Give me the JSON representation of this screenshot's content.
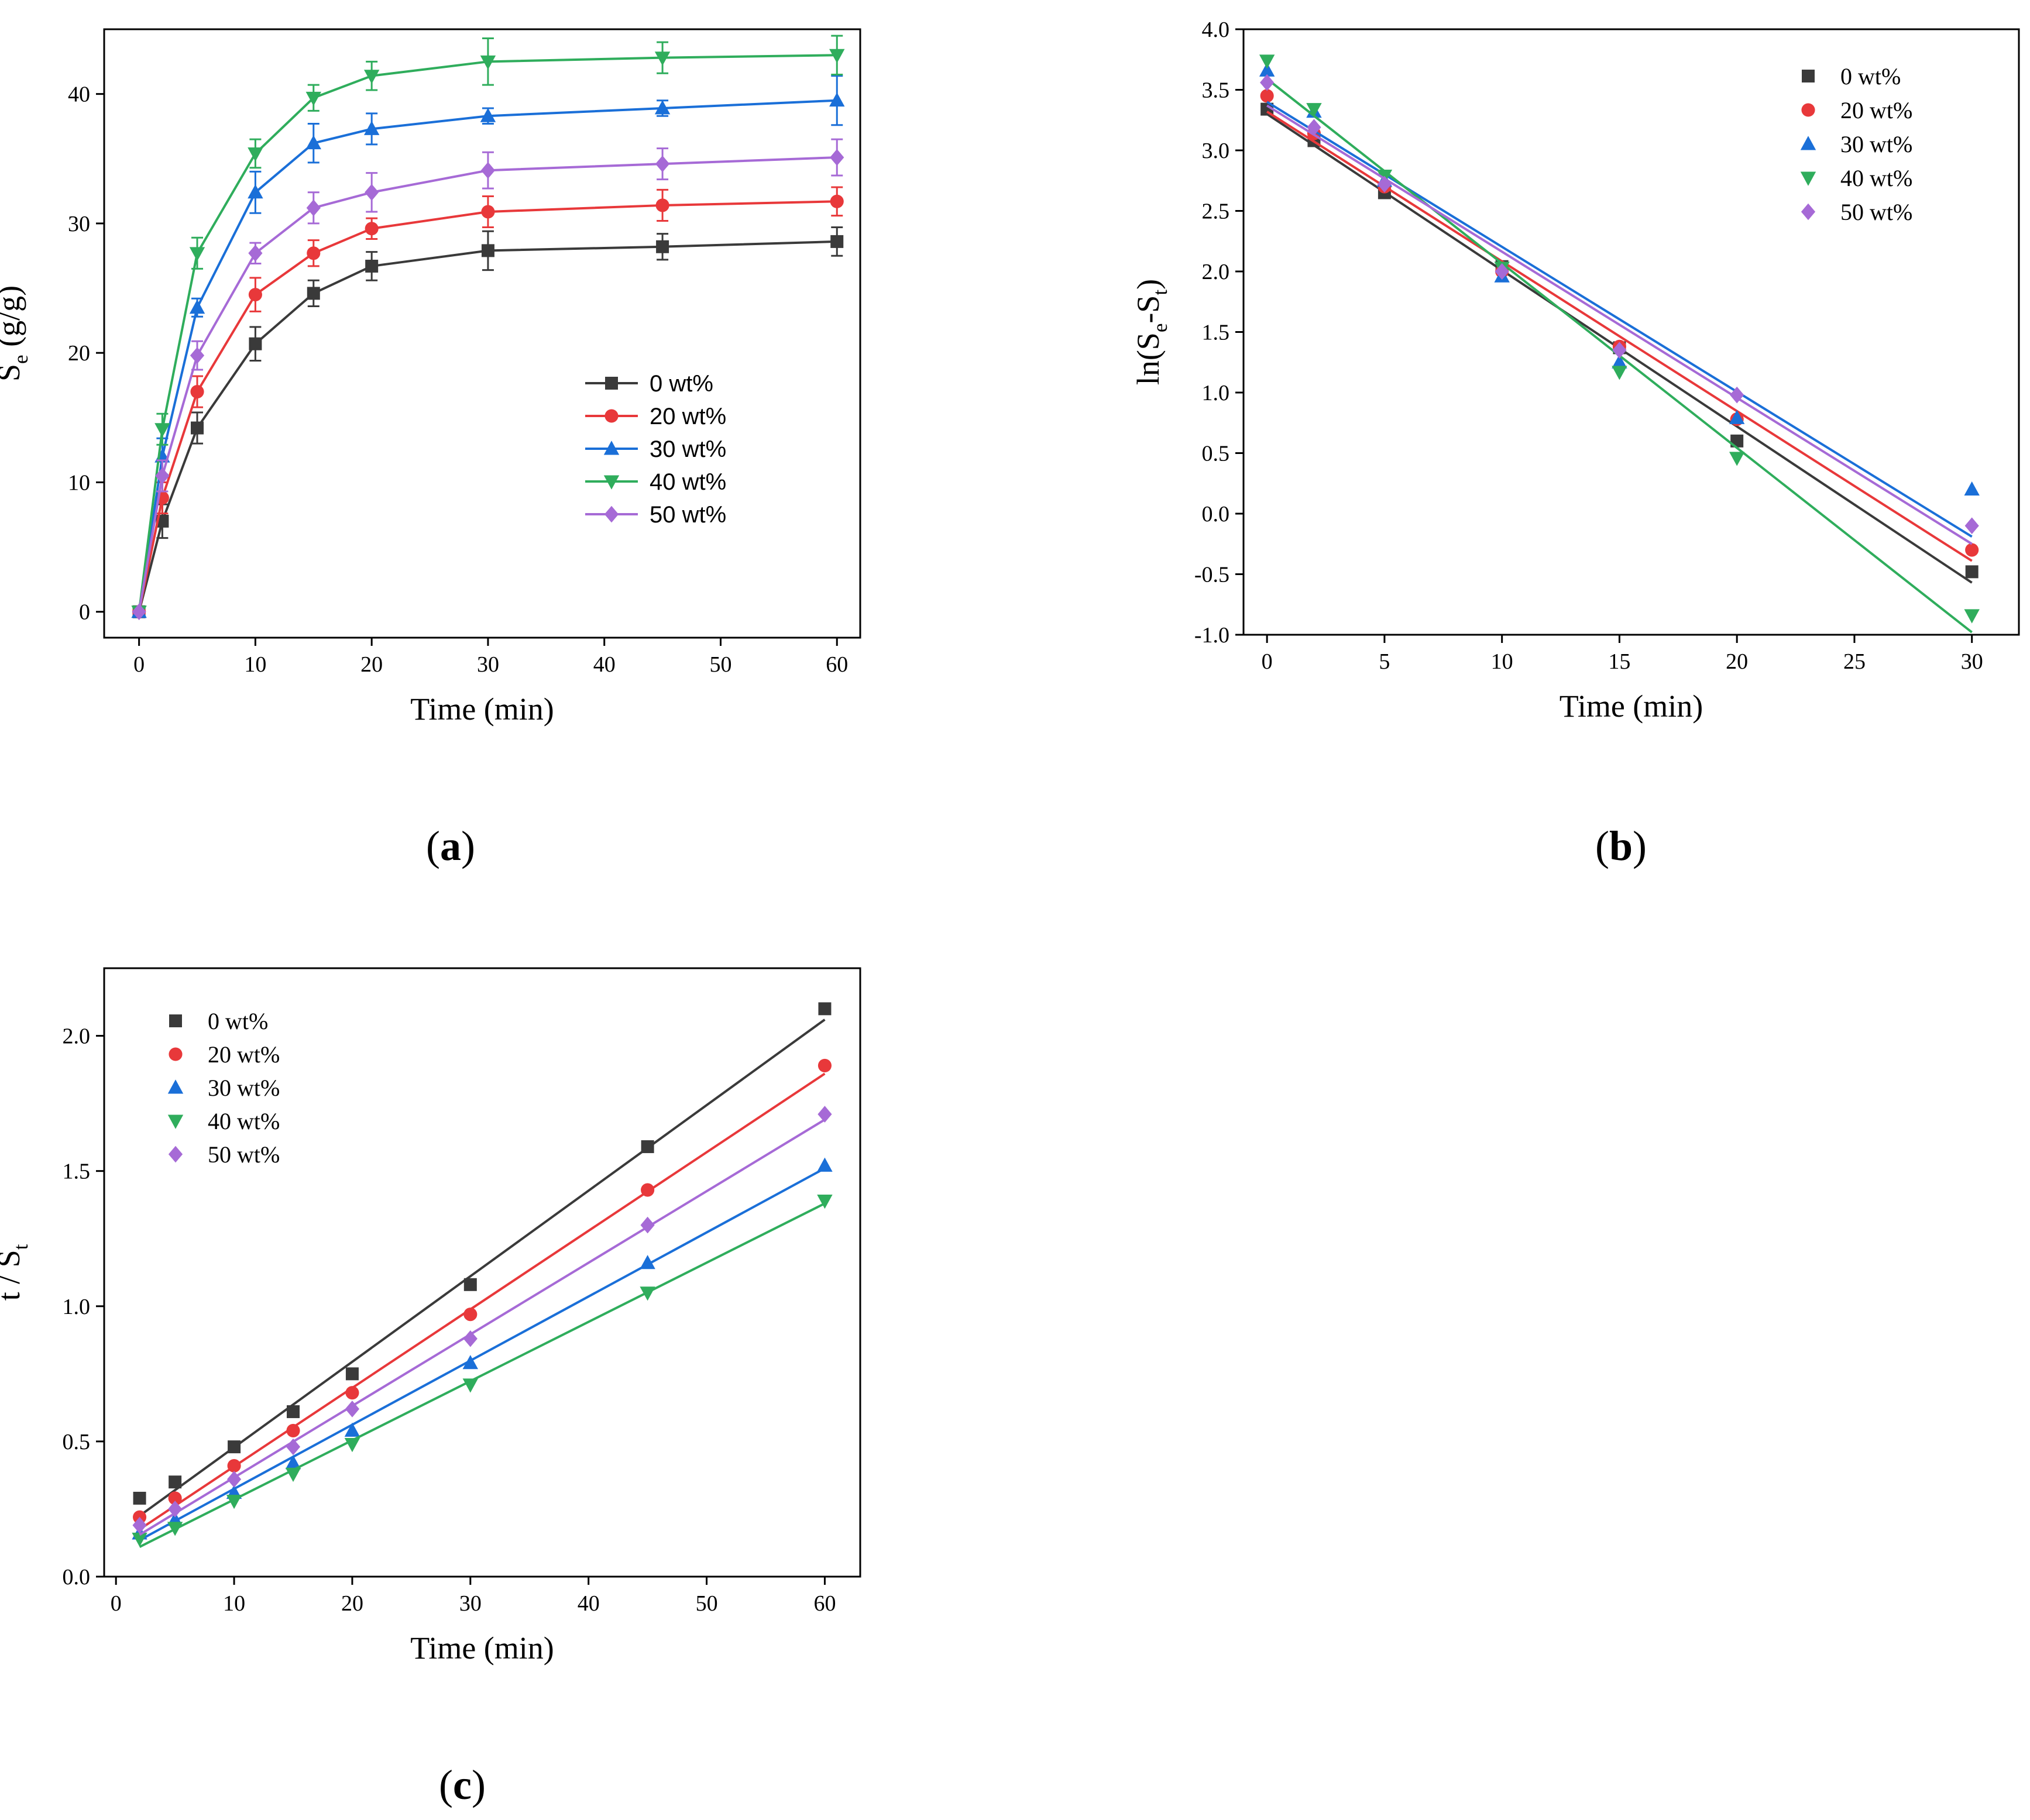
{
  "chart_data": [
    {
      "type": "line",
      "panel": "(a)",
      "panel_letter": "a",
      "xlabel": "Time (min)",
      "ylabel": "Se (g/g)",
      "ylabel_main": "S",
      "ylabel_sub": "e",
      "ylabel_tail": " (g/g)",
      "xlim": [
        -3,
        62
      ],
      "ylim": [
        -2,
        45
      ],
      "xticks": [
        0,
        10,
        20,
        30,
        40,
        50,
        60
      ],
      "yticks": [
        0,
        10,
        20,
        30,
        40
      ],
      "legend_position": "middle-right",
      "x": [
        0,
        2,
        5,
        10,
        15,
        20,
        30,
        45,
        60
      ],
      "series": [
        {
          "name": "0 wt%",
          "values": [
            0,
            7,
            14.2,
            20.7,
            24.6,
            26.7,
            27.9,
            28.2,
            28.6
          ],
          "errors": [
            0,
            1.3,
            1.2,
            1.3,
            1.0,
            1.1,
            1.5,
            1.0,
            1.1
          ]
        },
        {
          "name": "20 wt%",
          "values": [
            0,
            8.8,
            17.0,
            24.5,
            27.7,
            29.6,
            30.9,
            31.4,
            31.7
          ],
          "errors": [
            0,
            1.2,
            1.2,
            1.3,
            1.0,
            0.8,
            1.2,
            1.2,
            1.1
          ]
        },
        {
          "name": "30 wt%",
          "values": [
            0,
            12.0,
            23.5,
            32.4,
            36.2,
            37.3,
            38.3,
            38.9,
            39.5
          ],
          "errors": [
            0,
            1.4,
            0.7,
            1.6,
            1.5,
            1.2,
            0.6,
            0.6,
            1.9
          ]
        },
        {
          "name": "40 wt%",
          "values": [
            0,
            14.1,
            27.7,
            35.4,
            39.7,
            41.4,
            42.5,
            42.8,
            43.0
          ],
          "errors": [
            0,
            1.2,
            1.2,
            1.1,
            1.0,
            1.1,
            1.8,
            1.2,
            1.5
          ]
        },
        {
          "name": "50 wt%",
          "values": [
            0,
            10.5,
            19.8,
            27.7,
            31.2,
            32.4,
            34.1,
            34.6,
            35.1
          ],
          "errors": [
            0,
            1.2,
            1.1,
            0.8,
            1.2,
            1.5,
            1.4,
            1.2,
            1.4
          ]
        }
      ]
    },
    {
      "type": "scatter",
      "panel": "(b)",
      "panel_letter": "b",
      "xlabel": "Time (min)",
      "ylabel": "ln(Se-St)",
      "ylabel_main": "ln(S",
      "ylabel_sub": "e",
      "ylabel_mid": "-S",
      "ylabel_sub2": "t",
      "ylabel_tail": ")",
      "xlim": [
        -1,
        32
      ],
      "ylim": [
        -1.0,
        4.0
      ],
      "xticks": [
        0,
        5,
        10,
        15,
        20,
        25,
        30
      ],
      "yticks": [
        "-1.0",
        "-0.5",
        "0.0",
        "0.5",
        "1.0",
        "1.5",
        "2.0",
        "2.5",
        "3.0",
        "3.5",
        "4.0"
      ],
      "legend_position": "top-right",
      "x": [
        0,
        2,
        5,
        10,
        15,
        20,
        30
      ],
      "series": [
        {
          "name": "0 wt%",
          "values": [
            3.34,
            3.08,
            2.65,
            2.04,
            1.37,
            0.6,
            -0.48
          ],
          "fit": [
            3.3,
            -0.57
          ]
        },
        {
          "name": "20 wt%",
          "values": [
            3.45,
            3.14,
            2.7,
            2.0,
            1.38,
            0.78,
            -0.3
          ],
          "fit": [
            3.32,
            -0.39
          ]
        },
        {
          "name": "30 wt%",
          "values": [
            3.66,
            3.32,
            2.75,
            1.96,
            1.25,
            0.79,
            0.2
          ],
          "fit": [
            3.4,
            -0.19
          ]
        },
        {
          "name": "40 wt%",
          "values": [
            3.74,
            3.34,
            2.79,
            2.03,
            1.17,
            0.46,
            -0.84
          ],
          "fit": [
            3.59,
            -0.98
          ]
        },
        {
          "name": "50 wt%",
          "values": [
            3.56,
            3.19,
            2.72,
            2.0,
            1.35,
            0.98,
            -0.1
          ],
          "fit": [
            3.37,
            -0.25
          ]
        }
      ]
    },
    {
      "type": "scatter",
      "panel": "(c)",
      "panel_letter": "c",
      "xlabel": "Time (min)",
      "ylabel": "t / St",
      "ylabel_main": "t / S",
      "ylabel_sub": "t",
      "ylabel_tail": "",
      "xlim": [
        -1,
        63
      ],
      "ylim": [
        0.0,
        2.25
      ],
      "xticks": [
        0,
        10,
        20,
        30,
        40,
        50,
        60
      ],
      "yticks": [
        "0.0",
        "0.5",
        "1.0",
        "1.5",
        "2.0"
      ],
      "legend_position": "top-left",
      "x": [
        2,
        5,
        10,
        15,
        20,
        30,
        45,
        60
      ],
      "series": [
        {
          "name": "0 wt%",
          "values": [
            0.29,
            0.35,
            0.48,
            0.61,
            0.75,
            1.08,
            1.59,
            2.1
          ],
          "fit": [
            0.225,
            2.06
          ]
        },
        {
          "name": "20 wt%",
          "values": [
            0.22,
            0.29,
            0.41,
            0.54,
            0.68,
            0.97,
            1.43,
            1.89
          ],
          "fit": [
            0.175,
            1.86
          ]
        },
        {
          "name": "30 wt%",
          "values": [
            0.16,
            0.21,
            0.31,
            0.42,
            0.54,
            0.79,
            1.16,
            1.52
          ],
          "fit": [
            0.135,
            1.51
          ]
        },
        {
          "name": "40 wt%",
          "values": [
            0.14,
            0.18,
            0.28,
            0.38,
            0.49,
            0.71,
            1.05,
            1.39
          ],
          "fit": [
            0.11,
            1.38
          ]
        },
        {
          "name": "50 wt%",
          "values": [
            0.19,
            0.25,
            0.36,
            0.48,
            0.62,
            0.88,
            1.3,
            1.71
          ],
          "fit": [
            0.155,
            1.69
          ]
        }
      ]
    }
  ],
  "colors": {
    "0 wt%": "#3a3a3a",
    "20 wt%": "#e8383a",
    "30 wt%": "#1a6fd8",
    "40 wt%": "#2fad5c",
    "50 wt%": "#a66ad6"
  },
  "markers": {
    "0 wt%": "square",
    "20 wt%": "circle",
    "30 wt%": "triangle-up",
    "40 wt%": "triangle-down",
    "50 wt%": "diamond"
  }
}
